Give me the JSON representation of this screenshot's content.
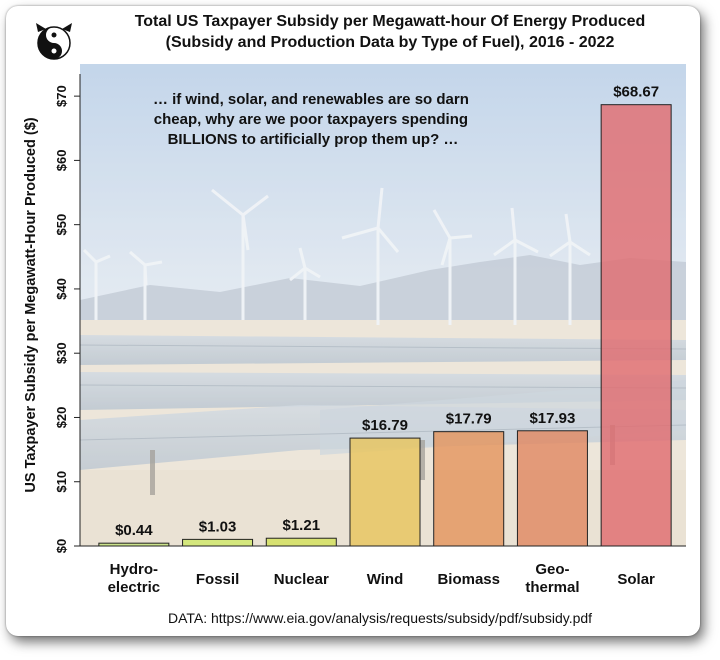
{
  "title_line1": "Total US Taxpayer Subsidy per Megawatt-hour Of Energy Produced",
  "title_line2": "(Subsidy and Production Data by Type of Fuel), 2016 - 2022",
  "annotation": [
    "… if wind, solar, and renewables are so darn",
    "cheap, why are we poor taxpayers spending",
    "BILLIONS to artificially prop them up? …"
  ],
  "source": "DATA: https://www.eia.gov/analysis/requests/subsidy/pdf/subsidy.pdf",
  "logo_icon": "yin-yang-cat-icon",
  "colors": {
    "text": "#111111",
    "bar_stroke": "#222222"
  },
  "chart_data": {
    "type": "bar",
    "ylabel": "US Taxpayer Subsidy per Megawatt-Hour Produced ($)",
    "ylim": [
      0,
      75
    ],
    "yticks": [
      0,
      10,
      20,
      30,
      40,
      50,
      60,
      70
    ],
    "ytick_labels": [
      "$0",
      "$10",
      "$20",
      "$30",
      "$40",
      "$50",
      "$60",
      "$70"
    ],
    "categories": [
      [
        "Hydro-",
        "electric"
      ],
      [
        "Fossil"
      ],
      [
        "Nuclear"
      ],
      [
        "Wind"
      ],
      [
        "Biomass"
      ],
      [
        "Geo-",
        "thermal"
      ],
      [
        "Solar"
      ]
    ],
    "values": [
      0.44,
      1.03,
      1.21,
      16.79,
      17.79,
      17.93,
      68.67
    ],
    "value_labels": [
      "$0.44",
      "$1.03",
      "$1.21",
      "$16.79",
      "$17.79",
      "$17.93",
      "$68.67"
    ],
    "bar_colors": [
      "#c4e27a",
      "#cfe86a",
      "#d3e05c",
      "#e8c45e",
      "#e4955e",
      "#e08963",
      "#e06c70"
    ]
  }
}
